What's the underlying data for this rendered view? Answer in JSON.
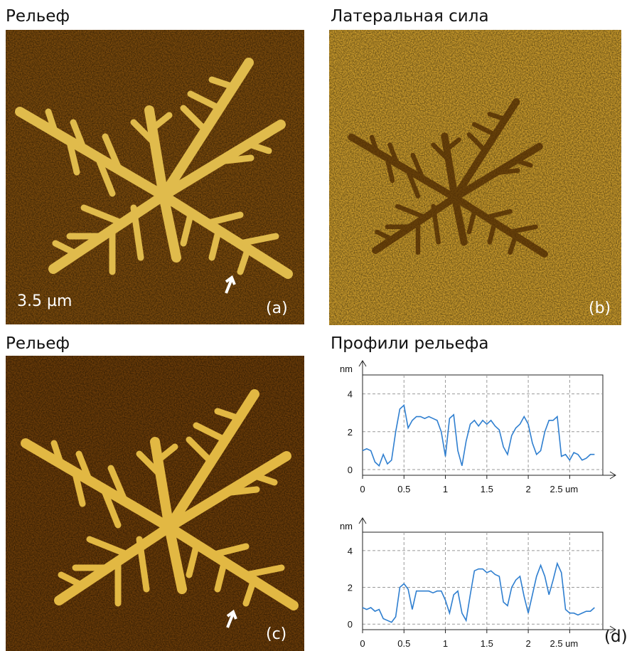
{
  "panels": [
    {
      "title": "Рельеф",
      "label": "(a)",
      "scale": "3.5 µm"
    },
    {
      "title": "Латеральная сила",
      "label": "(b)"
    },
    {
      "title": "Рельеф",
      "label": "(c)"
    },
    {
      "title": "Профили рельефа",
      "label": "(d)"
    }
  ],
  "chart_data": [
    {
      "type": "line",
      "y_label": "nm",
      "color": "#2f7fd0",
      "grid": true,
      "xlim": [
        0,
        2.9
      ],
      "ylim": [
        -0.3,
        5
      ],
      "xticks": [
        0,
        0.5,
        1,
        1.5,
        2,
        {
          "value": 2.5,
          "label": "2.5 um"
        }
      ],
      "yticks": [
        0,
        2,
        4
      ],
      "x": [
        0,
        0.05,
        0.1,
        0.15,
        0.2,
        0.25,
        0.3,
        0.35,
        0.4,
        0.45,
        0.5,
        0.55,
        0.6,
        0.65,
        0.7,
        0.75,
        0.8,
        0.85,
        0.9,
        0.95,
        1,
        1.05,
        1.1,
        1.15,
        1.2,
        1.25,
        1.3,
        1.35,
        1.4,
        1.45,
        1.5,
        1.55,
        1.6,
        1.65,
        1.7,
        1.75,
        1.8,
        1.85,
        1.9,
        1.95,
        2,
        2.05,
        2.1,
        2.15,
        2.2,
        2.25,
        2.3,
        2.35,
        2.4,
        2.45,
        2.5,
        2.55,
        2.6,
        2.65,
        2.7,
        2.75,
        2.8
      ],
      "values": [
        1.0,
        1.1,
        1.0,
        0.4,
        0.2,
        0.8,
        0.3,
        0.5,
        2.0,
        3.2,
        3.4,
        2.2,
        2.6,
        2.8,
        2.8,
        2.7,
        2.8,
        2.7,
        2.6,
        2.0,
        0.7,
        2.7,
        2.9,
        1.0,
        0.2,
        1.5,
        2.4,
        2.6,
        2.3,
        2.6,
        2.4,
        2.6,
        2.3,
        2.1,
        1.2,
        0.8,
        1.8,
        2.2,
        2.4,
        2.8,
        2.4,
        1.4,
        0.8,
        1.0,
        2.0,
        2.6,
        2.6,
        2.8,
        0.7,
        0.8,
        0.5,
        0.9,
        0.8,
        0.5,
        0.6,
        0.8,
        0.8
      ]
    },
    {
      "type": "line",
      "y_label": "nm",
      "color": "#2f7fd0",
      "grid": true,
      "xlim": [
        0,
        2.9
      ],
      "ylim": [
        -0.3,
        5
      ],
      "xticks": [
        0,
        0.5,
        1,
        1.5,
        2,
        {
          "value": 2.5,
          "label": "2.5 um"
        }
      ],
      "yticks": [
        0,
        2,
        4
      ],
      "x": [
        0,
        0.05,
        0.1,
        0.15,
        0.2,
        0.25,
        0.3,
        0.35,
        0.4,
        0.45,
        0.5,
        0.55,
        0.6,
        0.65,
        0.7,
        0.75,
        0.8,
        0.85,
        0.9,
        0.95,
        1,
        1.05,
        1.1,
        1.15,
        1.2,
        1.25,
        1.3,
        1.35,
        1.4,
        1.45,
        1.5,
        1.55,
        1.6,
        1.65,
        1.7,
        1.75,
        1.8,
        1.85,
        1.9,
        1.95,
        2,
        2.05,
        2.1,
        2.15,
        2.2,
        2.25,
        2.3,
        2.35,
        2.4,
        2.45,
        2.5,
        2.55,
        2.6,
        2.65,
        2.7,
        2.75,
        2.8
      ],
      "values": [
        0.9,
        0.8,
        0.9,
        0.7,
        0.8,
        0.3,
        0.2,
        0.1,
        0.4,
        2.0,
        2.2,
        1.9,
        0.8,
        1.8,
        1.8,
        1.8,
        1.8,
        1.7,
        1.8,
        1.8,
        1.3,
        0.6,
        1.6,
        1.8,
        0.6,
        0.2,
        1.6,
        2.9,
        3.0,
        3.0,
        2.8,
        2.9,
        2.7,
        2.6,
        1.2,
        1.0,
        2.0,
        2.4,
        2.6,
        1.5,
        0.6,
        1.6,
        2.6,
        3.2,
        2.6,
        1.6,
        2.4,
        3.3,
        2.8,
        0.8,
        0.6,
        0.6,
        0.5,
        0.6,
        0.7,
        0.7,
        0.9
      ]
    }
  ]
}
